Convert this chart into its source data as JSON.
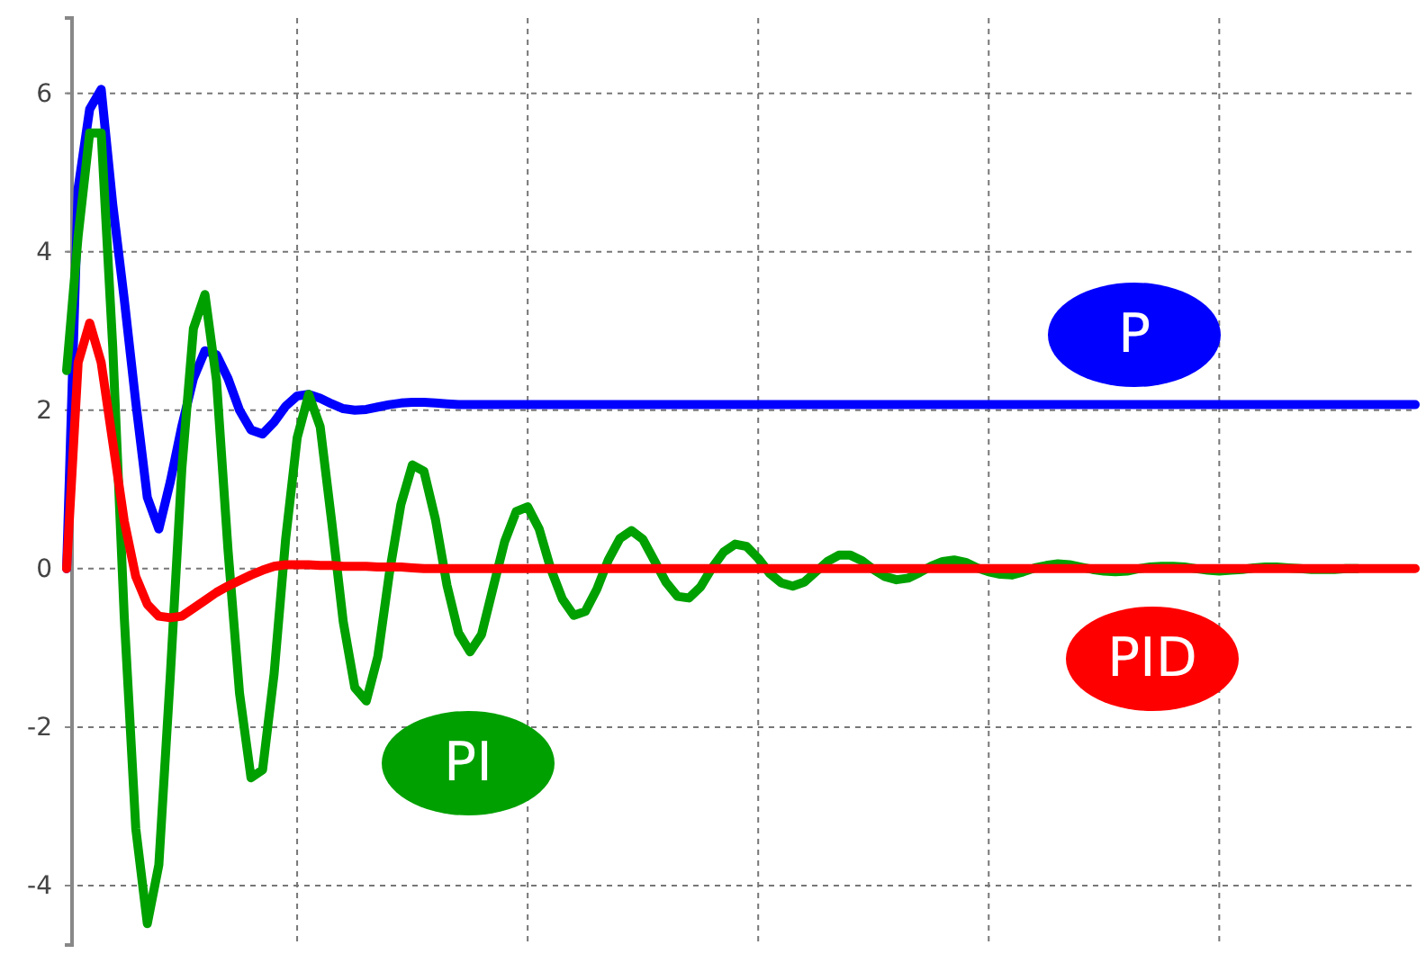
{
  "chart_data": {
    "type": "line",
    "ylim": [
      -4.75,
      6.95
    ],
    "yticks": [
      -4,
      -2,
      0,
      2,
      4,
      6
    ],
    "grid": true,
    "tick_labels": "y",
    "marker": "none",
    "line_style": "solid",
    "categories": [
      null,
      null,
      null,
      null,
      null,
      null,
      null,
      null,
      null,
      null,
      null,
      null,
      null,
      null,
      null,
      null,
      null,
      null,
      null,
      null,
      null,
      null,
      null,
      null,
      null,
      null,
      null,
      null,
      null,
      null,
      null,
      null,
      null,
      null,
      null,
      null,
      null,
      null,
      null,
      null,
      null,
      null,
      null,
      null,
      null,
      null,
      null,
      null,
      null,
      null,
      null,
      null,
      null,
      null,
      null,
      null,
      null,
      null,
      null,
      null,
      null,
      null,
      null,
      null,
      null,
      null,
      null,
      null,
      null,
      null,
      null,
      null,
      null,
      null,
      null,
      null,
      null,
      null,
      null,
      null,
      null,
      null,
      null,
      null,
      null,
      null,
      null,
      null,
      null,
      null,
      null,
      null,
      null,
      null,
      null,
      null,
      null,
      null,
      null,
      null,
      null,
      null,
      null,
      null,
      null,
      null,
      null,
      null,
      null,
      null,
      null,
      null,
      null,
      null,
      null,
      null,
      null,
      null
    ],
    "series": [
      {
        "name": "P",
        "color": "#0000ff",
        "values": [
          0,
          4.8,
          5.8,
          6.05,
          4.6,
          3.4,
          2.1,
          0.9,
          0.5,
          1.1,
          1.8,
          2.4,
          2.75,
          2.7,
          2.4,
          2.0,
          1.75,
          1.7,
          1.85,
          2.05,
          2.18,
          2.2,
          2.15,
          2.08,
          2.02,
          2.0,
          2.01,
          2.04,
          2.07,
          2.09,
          2.1,
          2.1,
          2.09,
          2.08,
          2.07,
          2.07,
          2.07,
          2.07,
          2.07,
          2.07,
          2.07,
          2.07,
          2.07,
          2.07,
          2.07,
          2.07,
          2.07,
          2.07,
          2.07,
          2.07,
          2.07,
          2.07,
          2.07,
          2.07,
          2.07,
          2.07,
          2.07,
          2.07,
          2.07,
          2.07,
          2.07,
          2.07,
          2.07,
          2.07,
          2.07,
          2.07,
          2.07,
          2.07,
          2.07,
          2.07,
          2.07,
          2.07,
          2.07,
          2.07,
          2.07,
          2.07,
          2.07,
          2.07,
          2.07,
          2.07,
          2.07,
          2.07,
          2.07,
          2.07,
          2.07,
          2.07,
          2.07,
          2.07,
          2.07,
          2.07,
          2.07,
          2.07,
          2.07,
          2.07,
          2.07,
          2.07,
          2.07,
          2.07,
          2.07,
          2.07,
          2.07,
          2.07,
          2.07,
          2.07,
          2.07,
          2.07,
          2.07,
          2.07,
          2.07,
          2.07,
          2.07,
          2.07,
          2.07,
          2.07,
          2.07,
          2.07,
          2.07,
          2.07
        ]
      },
      {
        "name": "PI",
        "color": "#00a000",
        "values": [
          2.5,
          4.2,
          5.5,
          5.5,
          2.8,
          -0.61,
          -3.28,
          -4.48,
          -3.74,
          -1.34,
          1.27,
          3.03,
          3.46,
          2.38,
          0.24,
          -1.57,
          -2.64,
          -2.54,
          -1.33,
          0.37,
          1.65,
          2.2,
          1.79,
          0.59,
          -0.67,
          -1.5,
          -1.67,
          -1.11,
          -0.06,
          0.81,
          1.31,
          1.23,
          0.62,
          -0.21,
          -0.81,
          -1.05,
          -0.83,
          -0.24,
          0.34,
          0.72,
          0.78,
          0.5,
          0,
          -0.38,
          -0.59,
          -0.54,
          -0.26,
          0.11,
          0.38,
          0.48,
          0.37,
          0.1,
          -0.17,
          -0.35,
          -0.37,
          -0.23,
          0.01,
          0.21,
          0.31,
          0.28,
          0.13,
          -0.06,
          -0.18,
          -0.22,
          -0.17,
          -0.04,
          0.09,
          0.17,
          0.17,
          0.1,
          -0.01,
          -0.1,
          -0.14,
          -0.12,
          -0.05,
          0.03,
          0.09,
          0.11,
          0.08,
          0.01,
          -0.04,
          -0.07,
          -0.08,
          -0.04,
          0.01,
          0.04,
          0.06,
          0.05,
          0.02,
          -0.01,
          -0.03,
          -0.04,
          -0.03,
          0,
          0.02,
          0.03,
          0.03,
          0.02,
          0,
          -0.02,
          -0.03,
          -0.02,
          -0.01,
          0.01,
          0.02,
          0.02,
          0.01,
          0,
          -0.01,
          -0.01,
          -0.01,
          0,
          0,
          null,
          null,
          null,
          null,
          null
        ]
      },
      {
        "name": "PID",
        "color": "#ff0000",
        "values": [
          0,
          2.6,
          3.1,
          2.6,
          1.6,
          0.6,
          -0.1,
          -0.45,
          -0.6,
          -0.62,
          -0.6,
          -0.5,
          -0.4,
          -0.3,
          -0.22,
          -0.15,
          -0.08,
          -0.02,
          0.03,
          0.05,
          0.05,
          0.05,
          0.04,
          0.04,
          0.03,
          0.03,
          0.03,
          0.02,
          0.02,
          0.02,
          0.01,
          0,
          0,
          0,
          0,
          0,
          0,
          0,
          0,
          0,
          0,
          0,
          0,
          0,
          0,
          0,
          0,
          0,
          0,
          0,
          0,
          0,
          0,
          0,
          0,
          0,
          0,
          0,
          0,
          0,
          0,
          0,
          0,
          0,
          0,
          0,
          0,
          0,
          0,
          0,
          0,
          0,
          0,
          0,
          0,
          0,
          0,
          0,
          0,
          0,
          0,
          0,
          0,
          0,
          0,
          0,
          0,
          0,
          0,
          0,
          0,
          0,
          0,
          0,
          0,
          0,
          0,
          0,
          0,
          0,
          0,
          0,
          0,
          0,
          0,
          0,
          0,
          0,
          0,
          0,
          0,
          0,
          0,
          0,
          0,
          0,
          0,
          0
        ]
      }
    ]
  }
}
